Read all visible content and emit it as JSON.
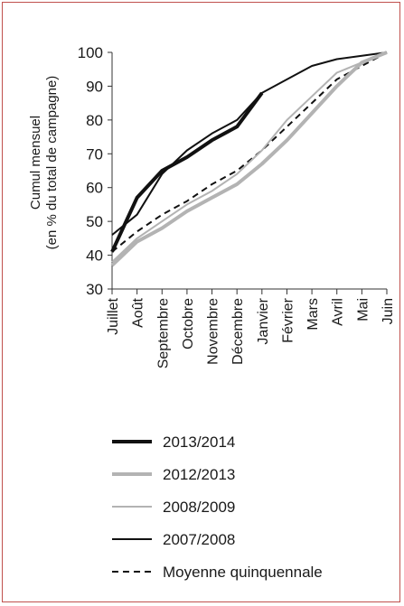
{
  "chart_data": {
    "type": "line",
    "title": "",
    "ylabel_line1": "Cumul mensuel",
    "ylabel_line2": "(en % du total de campagne)",
    "xlabel": "",
    "ylim": [
      30,
      100
    ],
    "yticks": [
      30,
      40,
      50,
      60,
      70,
      80,
      90,
      100
    ],
    "grid": false,
    "legend_position": "bottom",
    "categories": [
      "Juillet",
      "Août",
      "Septembre",
      "Octobre",
      "Novembre",
      "Décembre",
      "Janvier",
      "Février",
      "Mars",
      "Avril",
      "Mai",
      "Juin"
    ],
    "series": [
      {
        "name": "2013/2014",
        "style": "thick",
        "color": "#111111",
        "values": [
          41,
          57,
          65,
          69,
          74,
          78,
          88,
          null,
          null,
          null,
          null,
          null
        ]
      },
      {
        "name": "2012/2013",
        "style": "thick",
        "color": "#b3b3b3",
        "values": [
          37,
          44,
          48,
          53,
          57,
          61,
          67,
          74,
          82,
          90,
          97,
          100
        ]
      },
      {
        "name": "2008/2009",
        "style": "thin",
        "color": "#b3b3b3",
        "values": [
          38,
          45,
          50,
          55,
          59,
          64,
          71,
          80,
          87,
          94,
          97,
          100
        ]
      },
      {
        "name": "2007/2008",
        "style": "thin",
        "color": "#111111",
        "values": [
          46,
          52,
          64,
          71,
          76,
          80,
          88,
          92,
          96,
          98,
          99,
          100
        ]
      },
      {
        "name": "Moyenne quinquennale",
        "style": "dashed",
        "color": "#111111",
        "values": [
          41,
          47,
          52,
          56,
          61,
          65,
          71,
          78,
          85,
          92,
          96,
          100
        ]
      }
    ]
  }
}
